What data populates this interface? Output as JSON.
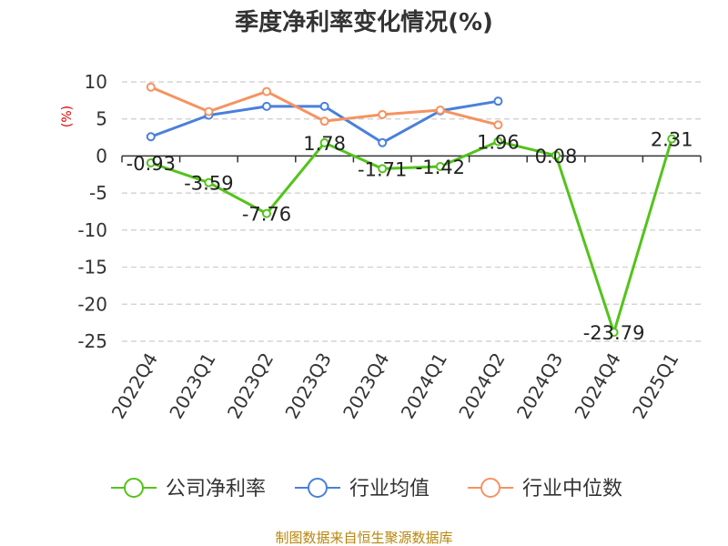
{
  "chart_data": {
    "type": "line",
    "title": "季度净利率变化情况(%)",
    "ylabel": "(%)",
    "xlabel": "",
    "categories": [
      "2022Q4",
      "2023Q1",
      "2023Q2",
      "2023Q3",
      "2023Q4",
      "2024Q1",
      "2024Q2",
      "2024Q3",
      "2024Q4",
      "2025Q1"
    ],
    "yticks": [
      10,
      5,
      0,
      -5,
      -10,
      -15,
      -20,
      -25
    ],
    "ylim": [
      -25,
      10
    ],
    "grid": true,
    "legend_position": "bottom",
    "series": [
      {
        "name": "公司净利率",
        "color": "#52c41a",
        "values": [
          -0.93,
          -3.59,
          -7.76,
          1.78,
          -1.71,
          -1.42,
          1.96,
          0.08,
          -23.79,
          2.31
        ],
        "labels": [
          "-0.93",
          "-3.59",
          "-7.76",
          "1.78",
          "-1.71",
          "-1.42",
          "1.96",
          "0.08",
          "-23.79",
          "2.31"
        ]
      },
      {
        "name": "行业均值",
        "color": "#4a7fdc",
        "values": [
          2.6,
          5.5,
          6.7,
          6.7,
          1.8,
          6.1,
          7.4,
          null,
          null,
          null
        ]
      },
      {
        "name": "行业中位数",
        "color": "#f59361",
        "values": [
          9.3,
          6.0,
          8.7,
          4.7,
          5.6,
          6.2,
          4.2,
          null,
          null,
          null
        ]
      }
    ]
  },
  "footer": "制图数据来自恒生聚源数据库"
}
